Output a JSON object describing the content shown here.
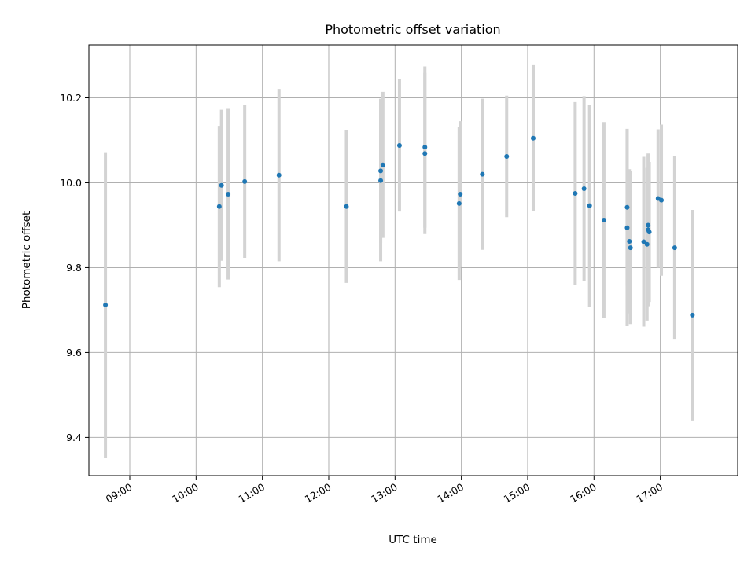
{
  "chart_data": {
    "type": "scatter",
    "title": "Photometric offset variation",
    "xlabel": "UTC time",
    "ylabel": "Photometric offset",
    "x_ticks": [
      "09:00",
      "10:00",
      "11:00",
      "12:00",
      "13:00",
      "14:00",
      "15:00",
      "16:00",
      "17:00"
    ],
    "y_ticks": [
      9.4,
      9.6,
      9.8,
      10.0,
      10.2
    ],
    "xlim": [
      "08:23",
      "18:10"
    ],
    "ylim": [
      9.31,
      10.325
    ],
    "grid": true,
    "point_color": "#1f77b4",
    "errorbar_color": "#d3d3d3",
    "points": [
      {
        "t": "08:38",
        "y": 9.712,
        "err": 0.36
      },
      {
        "t": "10:21",
        "y": 9.944,
        "err": 0.19
      },
      {
        "t": "10:23",
        "y": 9.994,
        "err": 0.178
      },
      {
        "t": "10:29",
        "y": 9.973,
        "err": 0.201
      },
      {
        "t": "10:44",
        "y": 10.003,
        "err": 0.18
      },
      {
        "t": "11:15",
        "y": 10.018,
        "err": 0.203
      },
      {
        "t": "12:16",
        "y": 9.944,
        "err": 0.18
      },
      {
        "t": "12:47",
        "y": 10.005,
        "err": 0.19
      },
      {
        "t": "12:47",
        "y": 10.028,
        "err": 0.17
      },
      {
        "t": "12:49",
        "y": 10.042,
        "err": 0.172
      },
      {
        "t": "13:04",
        "y": 10.088,
        "err": 0.156
      },
      {
        "t": "13:27",
        "y": 10.084,
        "err": 0.19
      },
      {
        "t": "13:27",
        "y": 10.069,
        "err": 0.19
      },
      {
        "t": "13:58",
        "y": 9.951,
        "err": 0.18
      },
      {
        "t": "13:59",
        "y": 9.973,
        "err": 0.172
      },
      {
        "t": "14:19",
        "y": 10.02,
        "err": 0.178
      },
      {
        "t": "14:41",
        "y": 10.062,
        "err": 0.143
      },
      {
        "t": "15:05",
        "y": 10.105,
        "err": 0.172
      },
      {
        "t": "15:43",
        "y": 9.975,
        "err": 0.215
      },
      {
        "t": "15:51",
        "y": 9.986,
        "err": 0.218
      },
      {
        "t": "15:56",
        "y": 9.946,
        "err": 0.238
      },
      {
        "t": "16:09",
        "y": 9.912,
        "err": 0.231
      },
      {
        "t": "16:30",
        "y": 9.942,
        "err": 0.185
      },
      {
        "t": "16:30",
        "y": 9.894,
        "err": 0.232
      },
      {
        "t": "16:32",
        "y": 9.862,
        "err": 0.17
      },
      {
        "t": "16:33",
        "y": 9.847,
        "err": 0.18
      },
      {
        "t": "16:45",
        "y": 9.861,
        "err": 0.2
      },
      {
        "t": "16:48",
        "y": 9.855,
        "err": 0.18
      },
      {
        "t": "16:49",
        "y": 9.9,
        "err": 0.165
      },
      {
        "t": "16:49",
        "y": 9.889,
        "err": 0.18
      },
      {
        "t": "16:50",
        "y": 9.884,
        "err": 0.165
      },
      {
        "t": "16:58",
        "y": 9.963,
        "err": 0.163
      },
      {
        "t": "17:01",
        "y": 9.959,
        "err": 0.178
      },
      {
        "t": "17:13",
        "y": 9.847,
        "err": 0.215
      },
      {
        "t": "17:29",
        "y": 9.688,
        "err": 0.248
      }
    ]
  }
}
